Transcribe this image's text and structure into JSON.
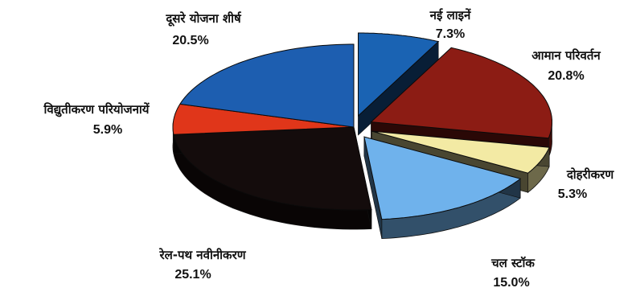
{
  "chart_data": {
    "type": "pie",
    "title": "",
    "slices": [
      {
        "label": "नई लाइनें",
        "value": 7.3,
        "value_text": "7.3%",
        "color": "#1a63b3",
        "exploded": true
      },
      {
        "label": "आमान परिवर्तन",
        "value": 20.8,
        "value_text": "20.8%",
        "color": "#8c1c14",
        "exploded": true
      },
      {
        "label": "दोहरीकरण",
        "value": 5.3,
        "value_text": "5.3%",
        "color": "#f3eaa4",
        "exploded": true
      },
      {
        "label": "चल स्टॉक",
        "value": 15.0,
        "value_text": "15.0%",
        "color": "#6fb2ec",
        "exploded": true
      },
      {
        "label": "रेल-पथ नवीनीकरण",
        "value": 25.1,
        "value_text": "25.1%",
        "color": "#140c0c",
        "exploded": false
      },
      {
        "label": "विद्युतीकरण परियोजनायें",
        "value": 5.9,
        "value_text": "5.9%",
        "color": "#e0361a",
        "exploded": false
      },
      {
        "label": "दूसरे योजना शीर्ष",
        "value": 20.5,
        "value_text": "20.5%",
        "color": "#1d5eb0",
        "exploded": false
      }
    ],
    "style": "3d-exploded",
    "start_angle_deg": -90,
    "direction": "clockwise"
  }
}
